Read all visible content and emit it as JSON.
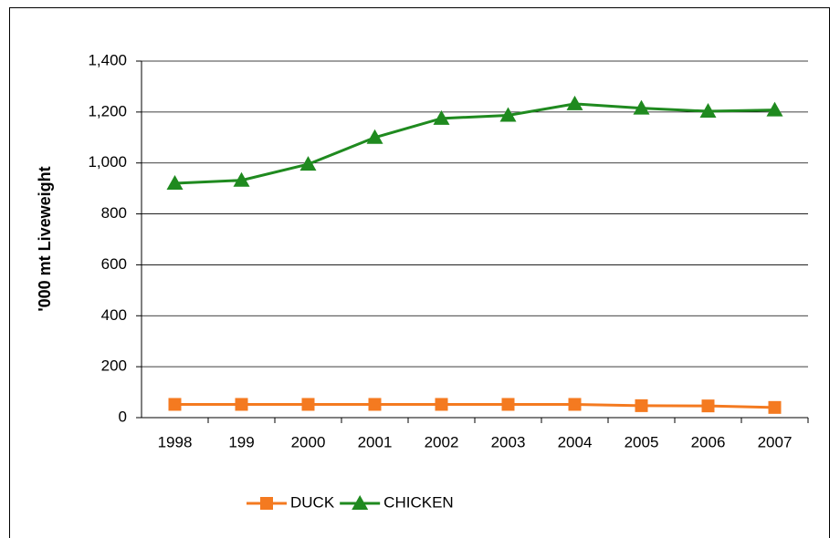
{
  "chart_data": {
    "type": "line",
    "y_label": "'000 mt Liveweight",
    "categories": [
      "1998",
      "199",
      "2000",
      "2001",
      "2002",
      "2003",
      "2004",
      "2005",
      "2006",
      "2007"
    ],
    "series": [
      {
        "name": "DUCK",
        "color": "#f47a20",
        "marker": "square",
        "values": [
          52,
          52,
          52,
          52,
          52,
          52,
          52,
          47,
          46,
          40
        ]
      },
      {
        "name": "CHICKEN",
        "color": "#1f8a1f",
        "marker": "triangle",
        "values": [
          920,
          932,
          995,
          1100,
          1175,
          1187,
          1232,
          1215,
          1203,
          1208
        ]
      }
    ],
    "ylim": [
      0,
      1400
    ],
    "yticks": [
      0,
      200,
      400,
      600,
      800,
      {
        "value": 1000,
        "label": "1,000"
      },
      {
        "value": 1200,
        "label": "1,200"
      },
      {
        "value": 1400,
        "label": "1,400"
      }
    ],
    "grid": true,
    "legend": "bottom"
  }
}
